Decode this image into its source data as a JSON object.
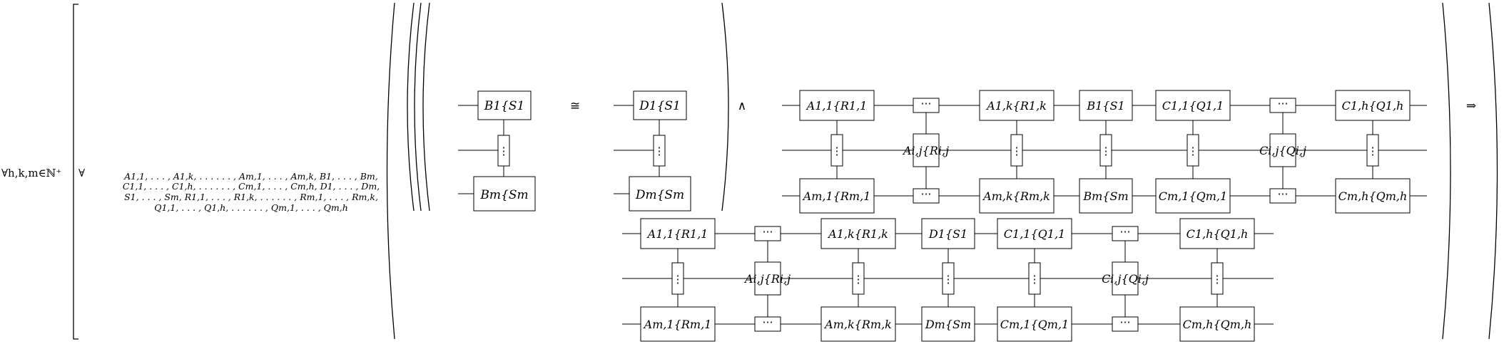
{
  "quantifiers": {
    "outer": "∀h,k,m∈ℕ⁺",
    "inner_symbol": "∀",
    "inner_vars": [
      "A1,1, . . . , A1,k, . . . . . . , Am,1, . . . , Am,k, B1, . . . , Bm,",
      "C1,1, . . . , C1,h, . . . . . . , Cm,1, . . . , Cm,h, D1, . . . , Dm,",
      "S1, . . . , Sm, R1,1, . . . , R1,k, . . . . . . , Rm,1, . . . , Rm,k,",
      "Q1,1, . . . , Q1,h, . . . . . . , Qm,1, . . . , Qm,h"
    ]
  },
  "symbols": {
    "iso": "≅",
    "and": "∧",
    "implies": "⇒",
    "vdots": "⋮",
    "hdots": "⋯"
  },
  "top_row": {
    "left_stack": [
      "B1{S1",
      "⋮",
      "Bm{Sm"
    ],
    "right_stack": [
      "D1{S1",
      "⋮",
      "Dm{Sm"
    ],
    "grid": [
      [
        "A1,1{R1,1",
        "⋯",
        "A1,k{R1,k",
        "B1{S1",
        "C1,1{Q1,1",
        "⋯",
        "C1,h{Q1,h"
      ],
      [
        "⋮",
        "Ai,j{Ri,j",
        "⋮",
        "⋮",
        "⋮",
        "Ci,j{Qi,j",
        "⋮"
      ],
      [
        "Am,1{Rm,1",
        "⋯",
        "Am,k{Rm,k",
        "Bm{Sm",
        "Cm,1{Qm,1",
        "⋯",
        "Cm,h{Qm,h"
      ]
    ]
  },
  "bottom_grid": [
    [
      "A1,1{R1,1",
      "⋯",
      "A1,k{R1,k",
      "D1{S1",
      "C1,1{Q1,1",
      "⋯",
      "C1,h{Q1,h"
    ],
    [
      "⋮",
      "Ai,j{Ri,j",
      "⋮",
      "⋮",
      "⋮",
      "Ci,j{Qi,j",
      "⋮"
    ],
    [
      "Am,1{Rm,1",
      "⋯",
      "Am,k{Rm,k",
      "Dm{Sm",
      "Cm,1{Qm,1",
      "⋯",
      "Cm,h{Qm,h"
    ]
  ]
}
